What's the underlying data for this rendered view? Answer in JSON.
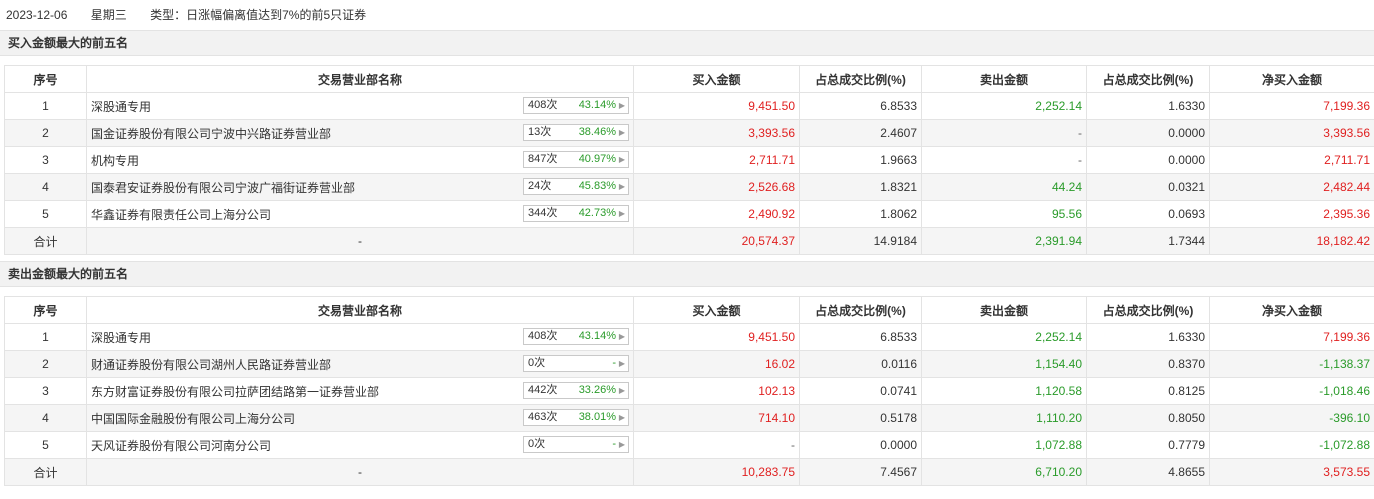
{
  "header": {
    "date": "2023-12-06",
    "weekday": "星期三",
    "type_text": "类型：日涨幅偏离值达到7%的前5只证券"
  },
  "columns": [
    "序号",
    "交易营业部名称",
    "买入金额",
    "占总成交比例(%)",
    "卖出金额",
    "占总成交比例(%)",
    "净买入金额"
  ],
  "buy_section": {
    "title": "买入金额最大的前五名",
    "rows": [
      {
        "idx": "1",
        "name": "深股通专用",
        "count": "408次",
        "pct": "43.14%",
        "buy": "9,451.50",
        "buy_ratio": "6.8533",
        "sell": "2,252.14",
        "sell_ratio": "1.6330",
        "net": "7,199.36"
      },
      {
        "idx": "2",
        "name": "国金证券股份有限公司宁波中兴路证券营业部",
        "count": "13次",
        "pct": "38.46%",
        "buy": "3,393.56",
        "buy_ratio": "2.4607",
        "sell": "-",
        "sell_ratio": "0.0000",
        "net": "3,393.56"
      },
      {
        "idx": "3",
        "name": "机构专用",
        "count": "847次",
        "pct": "40.97%",
        "buy": "2,711.71",
        "buy_ratio": "1.9663",
        "sell": "-",
        "sell_ratio": "0.0000",
        "net": "2,711.71"
      },
      {
        "idx": "4",
        "name": "国泰君安证券股份有限公司宁波广福街证券营业部",
        "count": "24次",
        "pct": "45.83%",
        "buy": "2,526.68",
        "buy_ratio": "1.8321",
        "sell": "44.24",
        "sell_ratio": "0.0321",
        "net": "2,482.44"
      },
      {
        "idx": "5",
        "name": "华鑫证券有限责任公司上海分公司",
        "count": "344次",
        "pct": "42.73%",
        "buy": "2,490.92",
        "buy_ratio": "1.8062",
        "sell": "95.56",
        "sell_ratio": "0.0693",
        "net": "2,395.36"
      }
    ],
    "total": {
      "label": "合计",
      "name": "-",
      "buy": "20,574.37",
      "buy_ratio": "14.9184",
      "sell": "2,391.94",
      "sell_ratio": "1.7344",
      "net": "18,182.42"
    }
  },
  "sell_section": {
    "title": "卖出金额最大的前五名",
    "rows": [
      {
        "idx": "1",
        "name": "深股通专用",
        "count": "408次",
        "pct": "43.14%",
        "buy": "9,451.50",
        "buy_ratio": "6.8533",
        "sell": "2,252.14",
        "sell_ratio": "1.6330",
        "net": "7,199.36"
      },
      {
        "idx": "2",
        "name": "财通证券股份有限公司湖州人民路证券营业部",
        "count": "0次",
        "pct": "-",
        "buy": "16.02",
        "buy_ratio": "0.0116",
        "sell": "1,154.40",
        "sell_ratio": "0.8370",
        "net": "-1,138.37"
      },
      {
        "idx": "3",
        "name": "东方财富证券股份有限公司拉萨团结路第一证券营业部",
        "count": "442次",
        "pct": "33.26%",
        "buy": "102.13",
        "buy_ratio": "0.0741",
        "sell": "1,120.58",
        "sell_ratio": "0.8125",
        "net": "-1,018.46"
      },
      {
        "idx": "4",
        "name": "中国国际金融股份有限公司上海分公司",
        "count": "463次",
        "pct": "38.01%",
        "buy": "714.10",
        "buy_ratio": "0.5178",
        "sell": "1,110.20",
        "sell_ratio": "0.8050",
        "net": "-396.10"
      },
      {
        "idx": "5",
        "name": "天风证券股份有限公司河南分公司",
        "count": "0次",
        "pct": "-",
        "buy": "-",
        "buy_ratio": "0.0000",
        "sell": "1,072.88",
        "sell_ratio": "0.7779",
        "net": "-1,072.88"
      }
    ],
    "total": {
      "label": "合计",
      "name": "-",
      "buy": "10,283.75",
      "buy_ratio": "7.4567",
      "sell": "6,710.20",
      "sell_ratio": "4.8655",
      "net": "3,573.55"
    }
  },
  "colors": {
    "positive": "#e02020",
    "negative": "#2a9b2a"
  }
}
